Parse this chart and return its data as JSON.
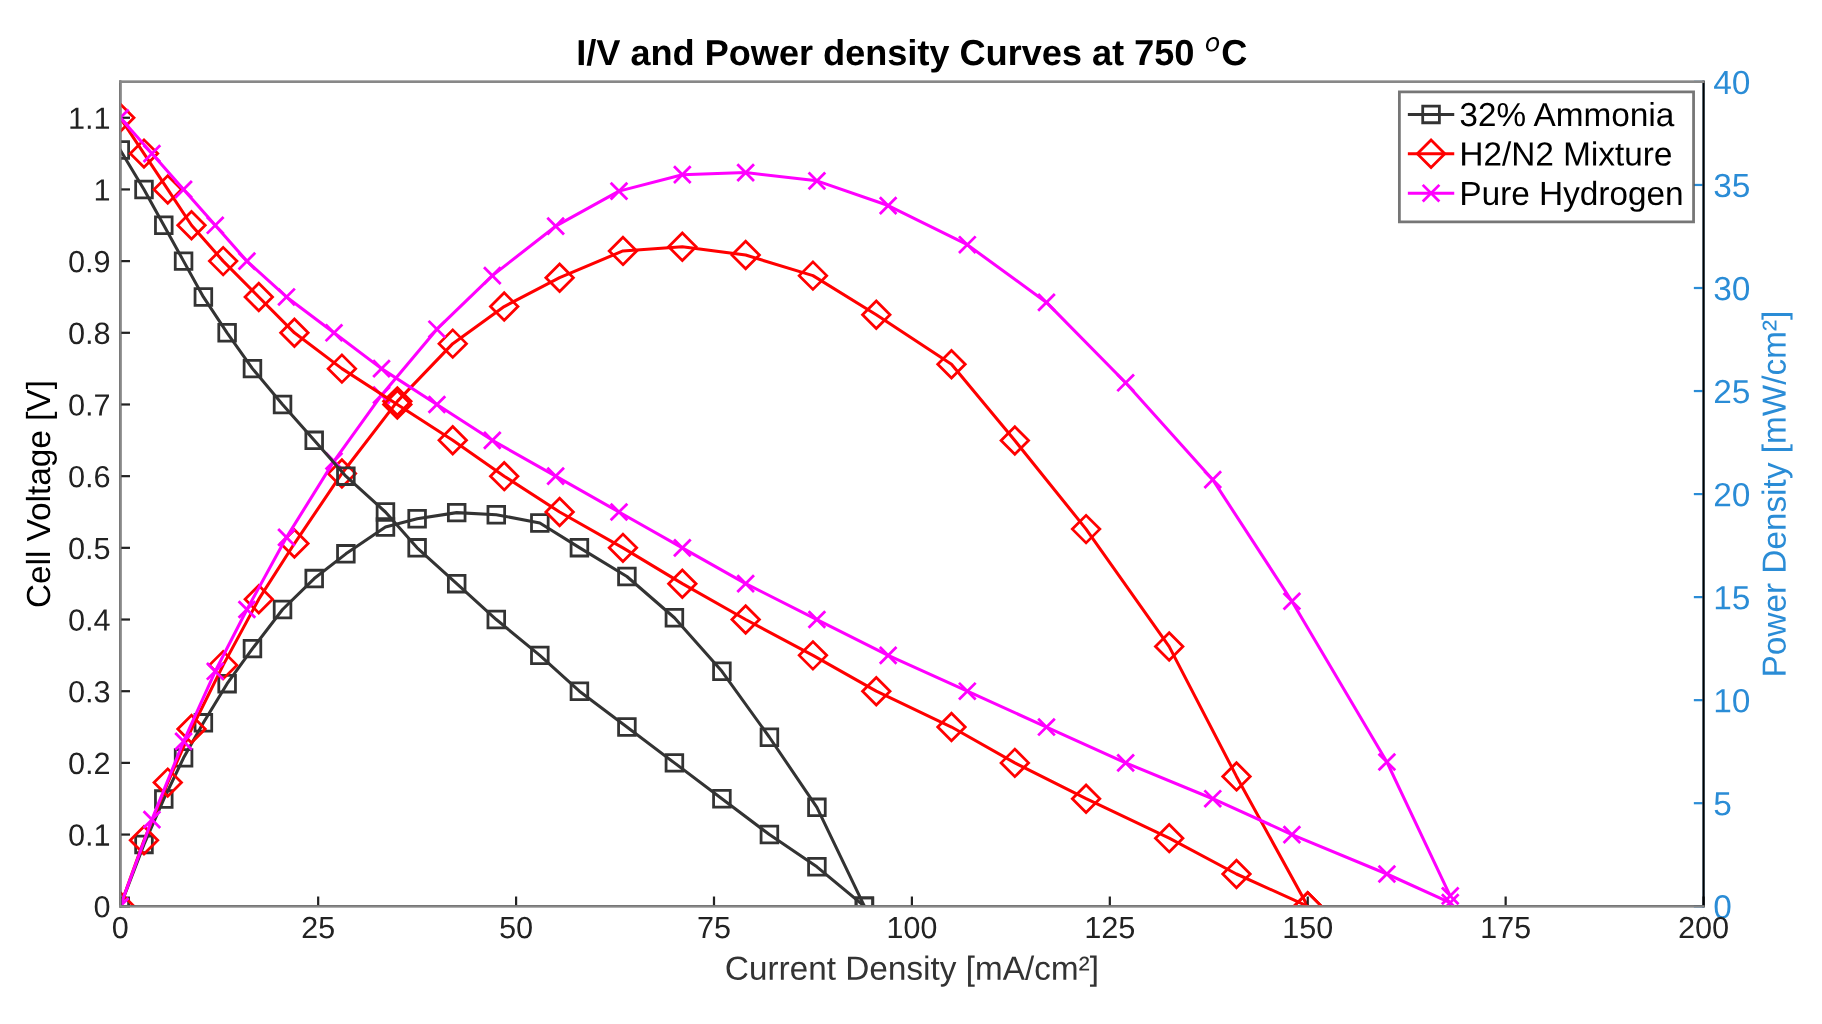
{
  "chart_data": {
    "type": "line",
    "title": "I/V and Power density Curves at 750 $^{o}$C",
    "xlabel": "Current Density [mA/cm²]",
    "ylabel": "Cell Voltage [V]",
    "y2label": "Power Density [mW/cm²]",
    "xlim": [
      0,
      200
    ],
    "xticks": [
      0,
      25,
      50,
      75,
      100,
      125,
      150,
      175,
      200
    ],
    "ylim": [
      0,
      1.15
    ],
    "yticks": [
      0,
      0.1,
      0.2,
      0.3,
      0.4,
      0.5,
      0.6,
      0.7,
      0.8,
      0.9,
      1,
      1.1
    ],
    "y2lim": [
      0,
      40
    ],
    "y2ticks": [
      0,
      5,
      10,
      15,
      20,
      25,
      30,
      35,
      40
    ],
    "grid": false,
    "legend": "top right",
    "series": [
      {
        "name": "32% Ammonia",
        "color": "#333333",
        "marker": "square",
        "x": [
          0,
          3,
          5.5,
          8,
          10.5,
          13.5,
          16.7,
          20.5,
          24.5,
          28.5,
          33.5,
          37.5,
          42.5,
          47.5,
          53,
          58,
          64,
          70,
          76,
          82,
          88,
          94
        ],
        "values": [
          1.055,
          1.0,
          0.95,
          0.9,
          0.85,
          0.8,
          0.75,
          0.7,
          0.65,
          0.6,
          0.55,
          0.5,
          0.45,
          0.4,
          0.35,
          0.3,
          0.25,
          0.2,
          0.15,
          0.1,
          0.055,
          0
        ]
      },
      {
        "name": "H2/N2 Mixture",
        "color": "#ff0000",
        "marker": "diamond",
        "x": [
          0,
          3,
          6,
          9,
          13,
          17.5,
          22,
          28,
          35,
          42,
          48.5,
          55.5,
          63.5,
          71,
          79,
          87.5,
          95.5,
          105,
          113,
          122,
          132.5,
          141,
          150
        ],
        "values": [
          1.1,
          1.05,
          1.0,
          0.95,
          0.9,
          0.85,
          0.8,
          0.75,
          0.7,
          0.65,
          0.6,
          0.55,
          0.5,
          0.45,
          0.4,
          0.35,
          0.3,
          0.25,
          0.2,
          0.15,
          0.095,
          0.045,
          0
        ]
      },
      {
        "name": "Pure Hydrogen",
        "color": "#ff00ff",
        "marker": "cross",
        "x": [
          0,
          4,
          8,
          12,
          16,
          21,
          27,
          33,
          40,
          47,
          55,
          63,
          71,
          79,
          88,
          97,
          107,
          117,
          127,
          138,
          148,
          160,
          168
        ],
        "values": [
          1.1,
          1.05,
          1.0,
          0.95,
          0.9,
          0.85,
          0.8,
          0.75,
          0.7,
          0.65,
          0.6,
          0.55,
          0.5,
          0.45,
          0.4,
          0.35,
          0.3,
          0.25,
          0.2,
          0.15,
          0.1,
          0.045,
          0.005
        ]
      },
      {
        "axis": "y2",
        "color": "#333333",
        "marker": "square",
        "x": [
          0,
          3,
          5.5,
          8,
          10.5,
          13.5,
          16.7,
          20.5,
          24.5,
          28.5,
          33.5,
          37.5,
          42.5,
          47.5,
          53,
          58,
          64,
          70,
          76,
          82,
          88,
          94
        ],
        "values": [
          0,
          3.0,
          5.2,
          7.2,
          8.9,
          10.8,
          12.5,
          14.4,
          15.9,
          17.1,
          18.4,
          18.8,
          19.1,
          19.0,
          18.6,
          17.4,
          16.0,
          14.0,
          11.4,
          8.2,
          4.8,
          0
        ]
      },
      {
        "axis": "y2",
        "color": "#ff0000",
        "marker": "diamond",
        "x": [
          0,
          3,
          6,
          9,
          13,
          17.5,
          22,
          28,
          35,
          42,
          48.5,
          55.5,
          63.5,
          71,
          79,
          87.5,
          95.5,
          105,
          113,
          122,
          132.5,
          141,
          150
        ],
        "values": [
          0,
          3.2,
          6.0,
          8.6,
          11.7,
          14.9,
          17.6,
          21.0,
          24.5,
          27.3,
          29.1,
          30.5,
          31.8,
          32.0,
          31.6,
          30.6,
          28.7,
          26.3,
          22.6,
          18.3,
          12.6,
          6.3,
          0
        ]
      },
      {
        "axis": "y2",
        "color": "#ff00ff",
        "marker": "cross",
        "x": [
          0,
          4,
          8,
          12,
          16,
          21,
          27,
          33,
          40,
          47,
          55,
          63,
          71,
          79,
          88,
          97,
          107,
          117,
          127,
          138,
          148,
          160,
          168
        ],
        "values": [
          0,
          4.2,
          8.0,
          11.4,
          14.4,
          17.9,
          21.6,
          24.8,
          28.0,
          30.6,
          33.0,
          34.7,
          35.5,
          35.6,
          35.2,
          34.0,
          32.1,
          29.3,
          25.4,
          20.7,
          14.8,
          7.0,
          0.5
        ]
      }
    ]
  }
}
